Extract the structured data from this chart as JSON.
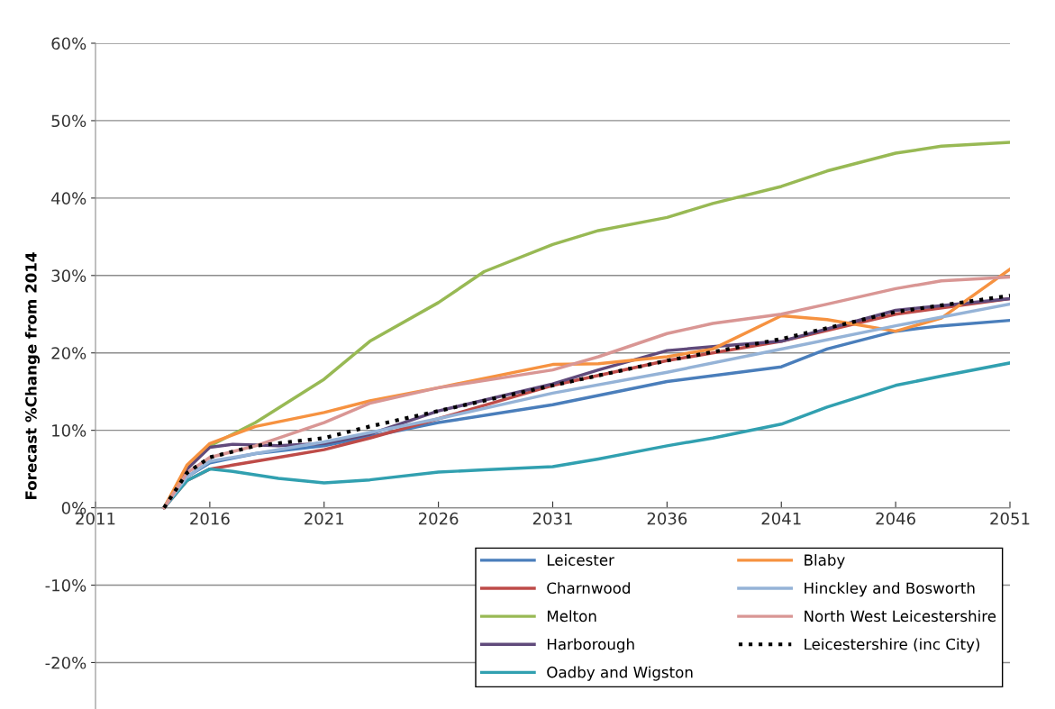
{
  "chart_data": {
    "type": "line",
    "ylabel": "Forecast %Change from 2014",
    "xlim": [
      2011,
      2051
    ],
    "xticks": [
      2011,
      2016,
      2021,
      2026,
      2031,
      2036,
      2041,
      2046,
      2051
    ],
    "ylim": [
      -26,
      60
    ],
    "yticks": [
      {
        "value": -20,
        "label": "-20%"
      },
      {
        "value": -10,
        "label": "-10%"
      },
      {
        "value": 0,
        "label": "0%"
      },
      {
        "value": 10,
        "label": "10%"
      },
      {
        "value": 20,
        "label": "20%"
      },
      {
        "value": 30,
        "label": "30%"
      },
      {
        "value": 40,
        "label": "40%"
      },
      {
        "value": 50,
        "label": "50%"
      },
      {
        "value": 60,
        "label": "60%"
      }
    ],
    "grid": "y",
    "legend": "bottom right",
    "series": [
      {
        "name": "Leicester",
        "color": "#4a7ebb",
        "x": [
          2014,
          2015,
          2016,
          2018,
          2021,
          2026,
          2031,
          2036,
          2041,
          2043,
          2046,
          2048,
          2051
        ],
        "values": [
          0,
          4,
          5.8,
          7,
          8,
          11,
          13.3,
          16.3,
          18.2,
          20.5,
          22.8,
          23.5,
          24.2
        ]
      },
      {
        "name": "Charnwood",
        "color": "#be4b48",
        "x": [
          2014,
          2015,
          2016,
          2017,
          2019,
          2021,
          2023,
          2026,
          2031,
          2036,
          2041,
          2046,
          2051
        ],
        "values": [
          0,
          3.5,
          5,
          5.5,
          6.5,
          7.5,
          9,
          11.5,
          15.8,
          19,
          21.5,
          25,
          27
        ]
      },
      {
        "name": "Melton",
        "color": "#98b954",
        "x": [
          2014,
          2015,
          2016,
          2018,
          2021,
          2023,
          2026,
          2028,
          2031,
          2033,
          2036,
          2038,
          2041,
          2043,
          2046,
          2048,
          2051
        ],
        "values": [
          0,
          5,
          8,
          11,
          16.6,
          21.5,
          26.5,
          30.5,
          34,
          35.8,
          37.5,
          39.3,
          41.5,
          43.5,
          45.8,
          46.7,
          47.2
        ]
      },
      {
        "name": "Harborough",
        "color": "#604a7b",
        "x": [
          2014,
          2015,
          2016,
          2017,
          2019,
          2021,
          2023,
          2026,
          2031,
          2033,
          2036,
          2038,
          2041,
          2046,
          2051
        ],
        "values": [
          0,
          5,
          7.8,
          8.2,
          8,
          8.3,
          9.5,
          12.5,
          16,
          17.8,
          20.3,
          20.8,
          21.5,
          25.5,
          27
        ]
      },
      {
        "name": "Oadby and Wigston",
        "color": "#31a0b0",
        "x": [
          2014,
          2015,
          2016,
          2017,
          2019,
          2021,
          2023,
          2026,
          2028,
          2031,
          2033,
          2036,
          2038,
          2041,
          2043,
          2046,
          2048,
          2051
        ],
        "values": [
          0,
          3.5,
          5,
          4.7,
          3.8,
          3.2,
          3.6,
          4.6,
          4.9,
          5.3,
          6.3,
          8,
          9,
          10.8,
          13,
          15.8,
          17,
          18.7
        ]
      },
      {
        "name": "Blaby",
        "color": "#f69240",
        "x": [
          2014,
          2015,
          2016,
          2018,
          2021,
          2023,
          2026,
          2031,
          2033,
          2036,
          2038,
          2041,
          2043,
          2046,
          2048,
          2051
        ],
        "values": [
          0,
          5.5,
          8.3,
          10.5,
          12.3,
          13.8,
          15.5,
          18.5,
          18.6,
          19.5,
          20.5,
          24.8,
          24.3,
          22.8,
          24.5,
          30.8
        ]
      },
      {
        "name": "Hinckley and Bosworth",
        "color": "#95b3d7",
        "x": [
          2014,
          2015,
          2016,
          2018,
          2021,
          2026,
          2031,
          2036,
          2041,
          2046,
          2051
        ],
        "values": [
          0,
          4,
          6,
          7,
          8.5,
          11.5,
          14.8,
          17.5,
          20.5,
          23.5,
          26.3
        ]
      },
      {
        "name": "North West Leicestershire",
        "color": "#d99694",
        "x": [
          2014,
          2015,
          2016,
          2018,
          2021,
          2023,
          2026,
          2031,
          2033,
          2036,
          2038,
          2041,
          2043,
          2046,
          2048,
          2051
        ],
        "values": [
          0,
          4.5,
          6.5,
          8,
          11,
          13.5,
          15.5,
          17.8,
          19.5,
          22.5,
          23.8,
          25,
          26.3,
          28.3,
          29.3,
          29.8
        ]
      },
      {
        "name": "Leicestershire (inc City)",
        "color": "#000000",
        "line_style": "dotted",
        "x": [
          2014,
          2015,
          2016,
          2018,
          2021,
          2023,
          2026,
          2031,
          2036,
          2041,
          2046,
          2051
        ],
        "values": [
          0,
          4.5,
          6.5,
          8,
          9,
          10.5,
          12.5,
          15.8,
          19,
          21.8,
          25.3,
          27.4
        ]
      }
    ]
  }
}
